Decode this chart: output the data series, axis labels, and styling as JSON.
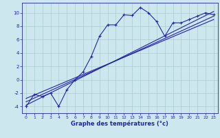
{
  "x_main": [
    0,
    1,
    2,
    3,
    4,
    5,
    6,
    7,
    8,
    9,
    10,
    11,
    12,
    13,
    14,
    15,
    16,
    17,
    18,
    19,
    20,
    21,
    22,
    23
  ],
  "y_main": [
    -4,
    -2.2,
    -2.5,
    -2.0,
    -4.0,
    -1.5,
    0.0,
    1.2,
    3.5,
    6.5,
    8.2,
    8.2,
    9.7,
    9.6,
    10.8,
    10.0,
    8.7,
    6.5,
    8.5,
    8.5,
    9.0,
    9.5,
    10.0,
    9.7
  ],
  "line1": {
    "x": [
      0,
      23
    ],
    "y": [
      -3.8,
      10.2
    ]
  },
  "line2": {
    "x": [
      0,
      23
    ],
    "y": [
      -3.3,
      9.5
    ]
  },
  "line3": {
    "x": [
      0,
      23
    ],
    "y": [
      -2.8,
      9.0
    ]
  },
  "xlim": [
    -0.5,
    23.5
  ],
  "ylim": [
    -5.0,
    11.5
  ],
  "yticks": [
    -4,
    -2,
    0,
    2,
    4,
    6,
    8,
    10
  ],
  "xticks": [
    0,
    1,
    2,
    3,
    4,
    5,
    6,
    7,
    8,
    9,
    10,
    11,
    12,
    13,
    14,
    15,
    16,
    17,
    18,
    19,
    20,
    21,
    22,
    23
  ],
  "xlabel": "Graphe des températures (°c)",
  "line_color": "#2222aa",
  "bg_color": "#cce8ee",
  "grid_color": "#aacccc"
}
